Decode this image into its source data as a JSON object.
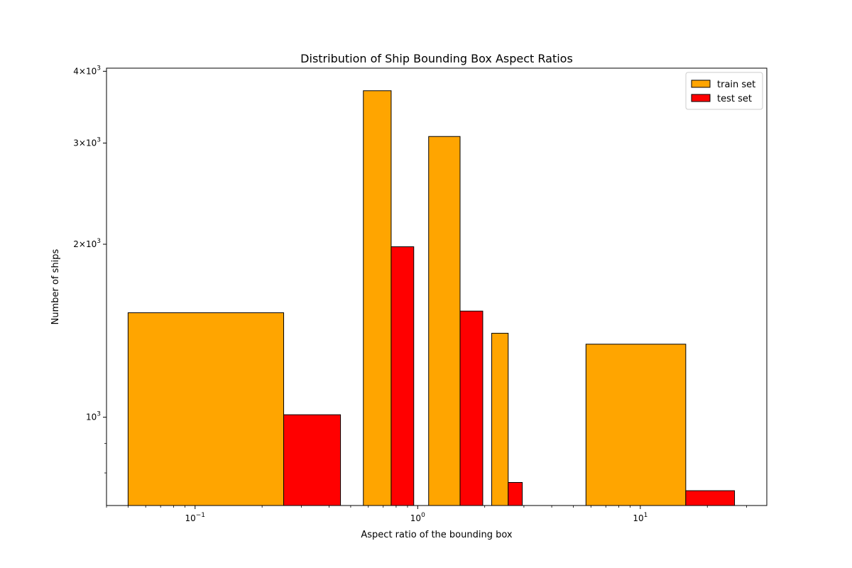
{
  "chart_data": {
    "type": "bar",
    "title": "Distribution of Ship Bounding Box Aspect Ratios",
    "xlabel": "Aspect ratio of the bounding box",
    "ylabel": "Number of ships",
    "x_scale": "log",
    "y_scale": "log",
    "xlim": [
      0.04,
      37
    ],
    "ylim": [
      702,
      4050
    ],
    "x_ticks": [
      {
        "value": 0.1,
        "base": "10",
        "exp": "−1"
      },
      {
        "value": 1,
        "base": "10",
        "exp": "0"
      },
      {
        "value": 10,
        "base": "10",
        "exp": "1"
      }
    ],
    "y_ticks": [
      {
        "value": 1000,
        "coef": "",
        "base": "10",
        "exp": "3"
      },
      {
        "value": 2000,
        "coef": "2×",
        "base": "10",
        "exp": "3"
      },
      {
        "value": 3000,
        "coef": "3×",
        "base": "10",
        "exp": "3"
      },
      {
        "value": 4000,
        "coef": "4×",
        "base": "10",
        "exp": "3"
      }
    ],
    "series": [
      {
        "name": "train set",
        "color": "#FFA500",
        "bars": [
          {
            "x0": 0.05,
            "x1": 0.25,
            "value": 1520
          },
          {
            "x0": 0.57,
            "x1": 0.76,
            "value": 3700
          },
          {
            "x0": 1.12,
            "x1": 1.55,
            "value": 3080
          },
          {
            "x0": 2.15,
            "x1": 2.55,
            "value": 1400
          },
          {
            "x0": 5.7,
            "x1": 16.0,
            "value": 1340
          }
        ]
      },
      {
        "name": "test set",
        "color": "#FF0000",
        "bars": [
          {
            "x0": 0.25,
            "x1": 0.45,
            "value": 1010
          },
          {
            "x0": 0.76,
            "x1": 0.96,
            "value": 1980
          },
          {
            "x0": 1.55,
            "x1": 1.96,
            "value": 1530
          },
          {
            "x0": 2.55,
            "x1": 2.95,
            "value": 770
          },
          {
            "x0": 16.0,
            "x1": 26.5,
            "value": 745
          }
        ]
      }
    ],
    "legend": {
      "position": "top-right"
    },
    "grid": false
  }
}
